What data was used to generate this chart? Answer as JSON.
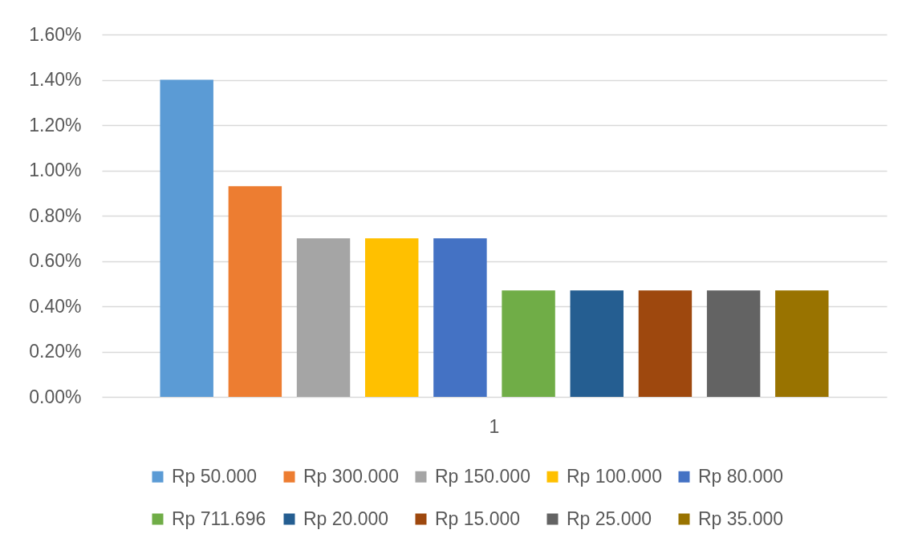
{
  "chart_data": {
    "type": "bar",
    "categories": [
      "1"
    ],
    "series": [
      {
        "name": "Rp 50.000",
        "color": "#5b9bd5",
        "values": [
          1.4
        ]
      },
      {
        "name": "Rp 300.000",
        "color": "#ed7d31",
        "values": [
          0.93
        ]
      },
      {
        "name": "Rp 150.000",
        "color": "#a5a5a5",
        "values": [
          0.7
        ]
      },
      {
        "name": "Rp 100.000",
        "color": "#ffc000",
        "values": [
          0.7
        ]
      },
      {
        "name": "Rp 80.000",
        "color": "#4472c4",
        "values": [
          0.7
        ]
      },
      {
        "name": "Rp 711.696",
        "color": "#70ad47",
        "values": [
          0.47
        ]
      },
      {
        "name": "Rp 20.000",
        "color": "#255e91",
        "values": [
          0.47
        ]
      },
      {
        "name": "Rp 15.000",
        "color": "#9e480e",
        "values": [
          0.47
        ]
      },
      {
        "name": "Rp 25.000",
        "color": "#636363",
        "values": [
          0.47
        ]
      },
      {
        "name": "Rp 35.000",
        "color": "#997300",
        "values": [
          0.47
        ]
      }
    ],
    "ylim": [
      0,
      1.6
    ],
    "yticks": [
      {
        "value": 0,
        "label": "0.00%"
      },
      {
        "value": 0.2,
        "label": "0.20%"
      },
      {
        "value": 0.4,
        "label": "0.40%"
      },
      {
        "value": 0.6,
        "label": "0.60%"
      },
      {
        "value": 0.8,
        "label": "0.80%"
      },
      {
        "value": 1.0,
        "label": "1.00%"
      },
      {
        "value": 1.2,
        "label": "1.20%"
      },
      {
        "value": 1.4,
        "label": "1.40%"
      },
      {
        "value": 1.6,
        "label": "1.60%"
      }
    ],
    "grid": "y",
    "legend": "bottom"
  }
}
